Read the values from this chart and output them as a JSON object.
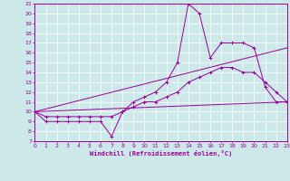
{
  "xlabel": "Windchill (Refroidissement éolien,°C)",
  "background_color": "#cce8e8",
  "line_color": "#990099",
  "grid_color": "#ffffff",
  "xmin": 0,
  "xmax": 23,
  "ymin": 7,
  "ymax": 21,
  "series": [
    {
      "x": [
        0,
        1,
        2,
        3,
        4,
        5,
        6,
        7,
        8,
        9,
        10,
        11,
        12,
        13,
        14,
        15,
        16,
        17,
        18,
        19,
        20,
        21,
        22,
        23
      ],
      "y": [
        10,
        9,
        9,
        9,
        9,
        9,
        9,
        7.5,
        10,
        11,
        11.5,
        12,
        13,
        15,
        21,
        20,
        15.5,
        17,
        17,
        17,
        16.5,
        12.5,
        11,
        11
      ],
      "marker": true
    },
    {
      "x": [
        0,
        1,
        2,
        3,
        4,
        5,
        6,
        7,
        8,
        9,
        10,
        11,
        12,
        13,
        14,
        15,
        16,
        17,
        18,
        19,
        20,
        21,
        22,
        23
      ],
      "y": [
        10,
        9.5,
        9.5,
        9.5,
        9.5,
        9.5,
        9.5,
        9.5,
        10,
        10.5,
        11,
        11,
        11.5,
        12,
        13,
        13.5,
        14,
        14.5,
        14.5,
        14,
        14,
        13,
        12,
        11
      ],
      "marker": true
    },
    {
      "x": [
        0,
        23
      ],
      "y": [
        10,
        16.5
      ],
      "marker": false
    },
    {
      "x": [
        0,
        23
      ],
      "y": [
        10,
        11
      ],
      "marker": false
    }
  ]
}
